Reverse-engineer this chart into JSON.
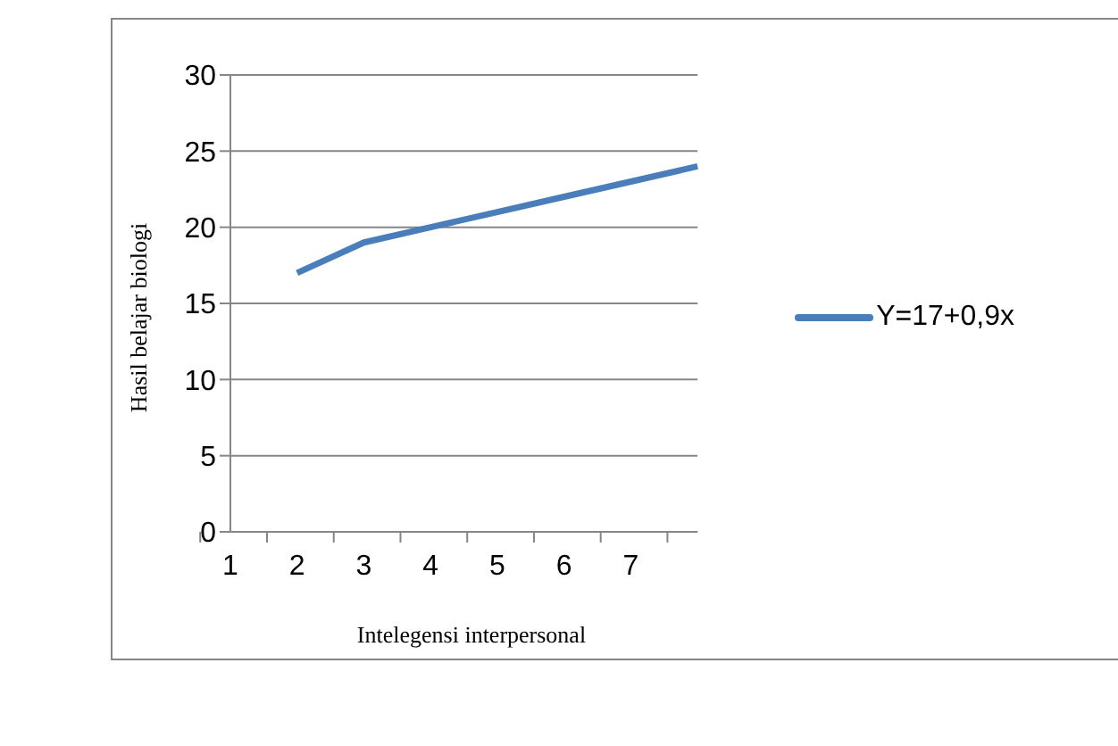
{
  "chart_data": {
    "type": "line",
    "xlabel": "Intelegensi interpersonal",
    "ylabel": "Hasil belajar biologi",
    "categories": [
      "1",
      "2",
      "3",
      "4",
      "5",
      "6",
      "7",
      null
    ],
    "series": [
      {
        "name": "Y=17+0,9x",
        "color": "#4a7ebb",
        "values": [
          null,
          17,
          19,
          20,
          21,
          22,
          23,
          24
        ]
      }
    ],
    "ylim": [
      0,
      30
    ],
    "yticks": [
      0,
      5,
      10,
      15,
      20,
      25,
      30
    ],
    "grid": "y",
    "legend": "right",
    "marker": "none",
    "line_style": "solid"
  }
}
